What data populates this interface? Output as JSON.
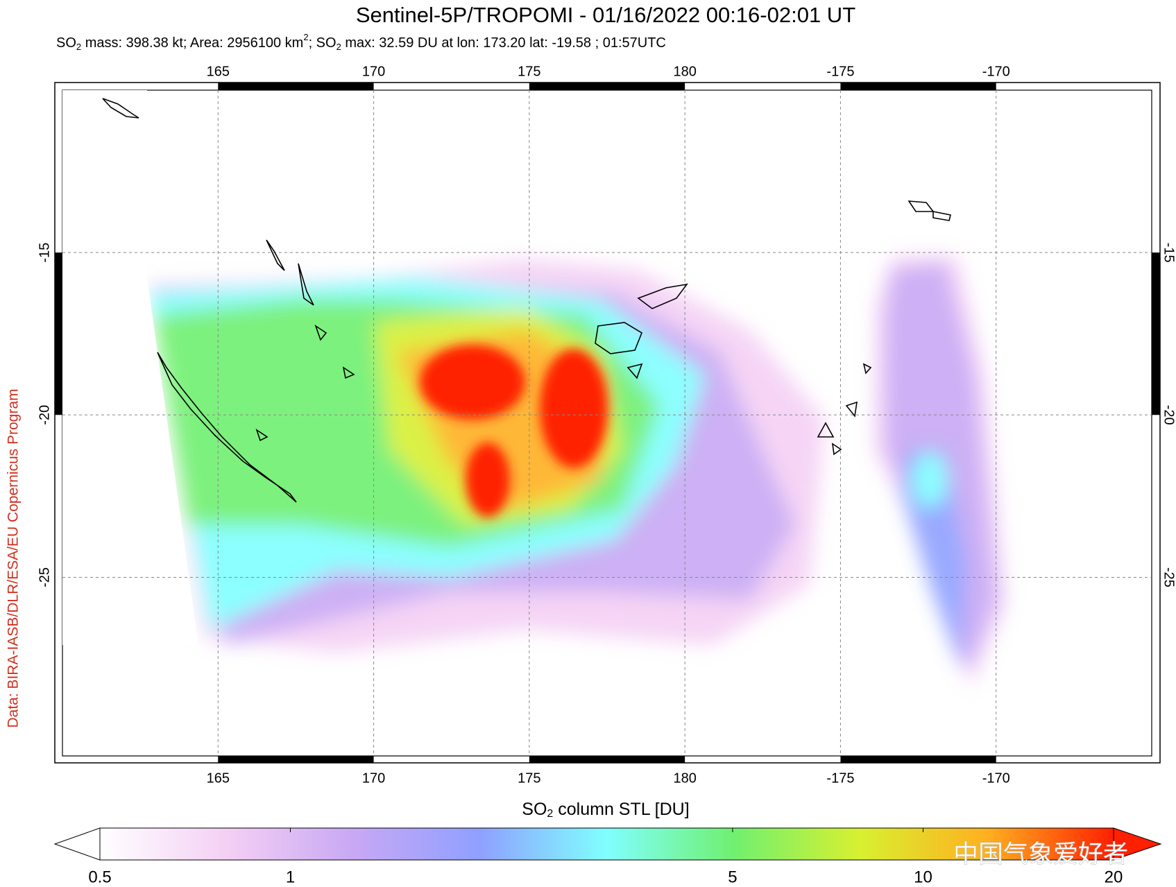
{
  "title": "Sentinel-5P/TROPOMI - 01/16/2022 00:16-02:01 UT",
  "subtitle": [
    "SO",
    "2",
    " mass: 398.38 kt; Area: 2956100 km",
    "2",
    "; SO",
    "2",
    " max: 32.59 DU at lon: 173.20 lat: -19.58 ; 01:57UTC"
  ],
  "map": {
    "lonlim": [
      160,
      195
    ],
    "latlim": [
      -10,
      -30.5
    ],
    "lonticks": [
      165,
      170,
      175,
      180,
      -175,
      -170
    ],
    "latticks": [
      -15,
      -20,
      -25
    ],
    "grid": true
  },
  "colorbar": {
    "label": [
      "SO",
      "2",
      " column STL [DU]"
    ],
    "scale": "log",
    "lim": [
      0.5,
      20
    ],
    "ticks": [
      0.5,
      1,
      5,
      10,
      20
    ],
    "colors": [
      "#ffffff",
      "#f4d0f4",
      "#c8a8f4",
      "#8fa0ff",
      "#80ffff",
      "#70f070",
      "#d8f030",
      "#ffb020",
      "#ff2000"
    ]
  },
  "credit": "Data: BIRA-IASB/DLR/ESA/EU Copernicus Program",
  "watermark": "中国气象爱好者"
}
